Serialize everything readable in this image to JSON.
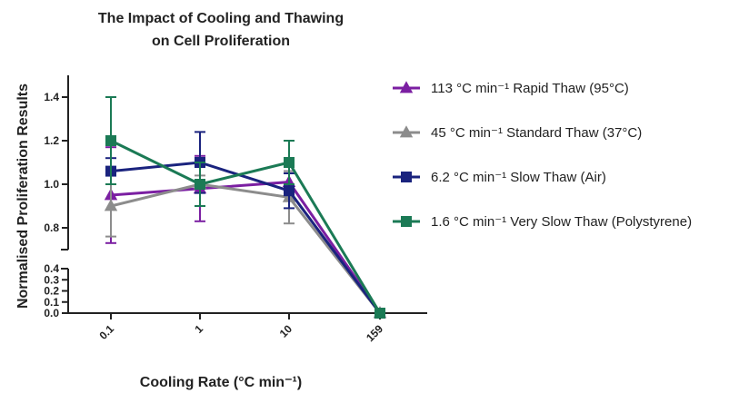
{
  "chart_data": {
    "type": "line",
    "title": "The Impact of Cooling and Thawing",
    "title_line2": "on Cell Proliferation",
    "xlabel": "Cooling Rate (°C min⁻¹)",
    "ylabel": "Normalised Proliferation Results",
    "categories": [
      "0.1",
      "1",
      "10",
      "159"
    ],
    "y_ticks_upper": [
      "0.8",
      "1.0",
      "1.2",
      "1.4"
    ],
    "y_ticks_lower": [
      "0.0",
      "0.1",
      "0.2",
      "0.3",
      "0.4"
    ],
    "ylim_upper": [
      0.7,
      1.5
    ],
    "ylim_lower": [
      0,
      0.4
    ],
    "axis_break": true,
    "legend_position": "right",
    "series": [
      {
        "name": "113 °C min⁻¹ Rapid Thaw (95°C)",
        "color": "#7b1fa2",
        "marker": "triangle",
        "values": [
          0.95,
          0.98,
          1.01,
          0.0
        ],
        "errors": [
          0.22,
          0.15,
          0.05,
          0.0
        ]
      },
      {
        "name": "45 °C min⁻¹ Standard Thaw (37°C)",
        "color": "#8c8c8c",
        "marker": "triangle",
        "values": [
          0.9,
          1.0,
          0.94,
          0.0
        ],
        "errors": [
          0.14,
          0.04,
          0.12,
          0.0
        ]
      },
      {
        "name": "6.2 °C min⁻¹ Slow Thaw (Air)",
        "color": "#1a237e",
        "marker": "square",
        "values": [
          1.06,
          1.1,
          0.97,
          0.0
        ],
        "errors": [
          0.06,
          0.14,
          0.08,
          0.0
        ]
      },
      {
        "name": "1.6 °C min⁻¹ Very Slow Thaw (Polystyrene)",
        "color": "#1b7a55",
        "marker": "square",
        "values": [
          1.2,
          1.0,
          1.1,
          0.0
        ],
        "errors": [
          0.2,
          0.1,
          0.1,
          0.0
        ]
      }
    ]
  }
}
